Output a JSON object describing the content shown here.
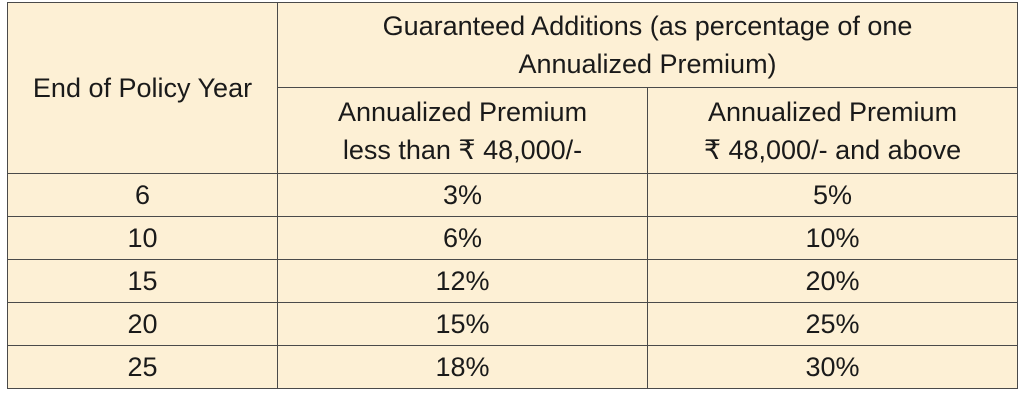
{
  "table": {
    "headers": {
      "end_of_policy_year": "End of Policy Year",
      "guaranteed_additions_line1": "Guaranteed Additions (as percentage of one",
      "guaranteed_additions_line2": "Annualized Premium)",
      "col_less_line1": "Annualized Premium",
      "col_less_line2": "less than ₹ 48,000/-",
      "col_above_line1": "Annualized Premium",
      "col_above_line2": "₹ 48,000/- and above"
    },
    "rows": [
      {
        "year": "6",
        "less": "3%",
        "above": "5%"
      },
      {
        "year": "10",
        "less": "6%",
        "above": "10%"
      },
      {
        "year": "15",
        "less": "12%",
        "above": "20%"
      },
      {
        "year": "20",
        "less": "15%",
        "above": "25%"
      },
      {
        "year": "25",
        "less": "18%",
        "above": "30%"
      }
    ]
  }
}
